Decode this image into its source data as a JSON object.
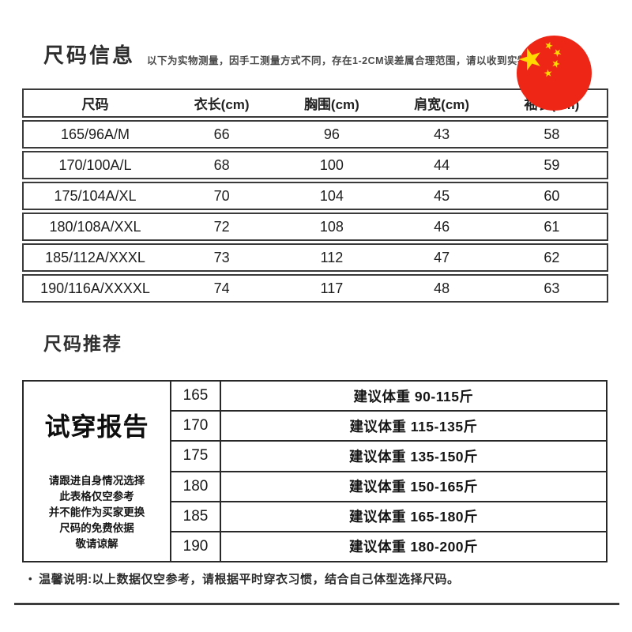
{
  "header": {
    "title": "尺码信息",
    "disclaimer": "以下为实物测量，因手工测量方式不同，存在1-2CM误差属合理范围，请以收到实物",
    "flag": {
      "red": "#ed2616",
      "star_yellow": "#ffd900",
      "star_glyph": "★"
    }
  },
  "size_table": {
    "headers": [
      "尺码",
      "衣长(cm)",
      "胸围(cm)",
      "肩宽(cm)",
      "袖长(cm)"
    ],
    "rows": [
      [
        "165/96A/M",
        "66",
        "96",
        "43",
        "58"
      ],
      [
        "170/100A/L",
        "68",
        "100",
        "44",
        "59"
      ],
      [
        "175/104A/XL",
        "70",
        "104",
        "45",
        "60"
      ],
      [
        "180/108A/XXL",
        "72",
        "108",
        "46",
        "61"
      ],
      [
        "185/112A/XXXL",
        "73",
        "112",
        "47",
        "62"
      ],
      [
        "190/116A/XXXXL",
        "74",
        "117",
        "48",
        "63"
      ]
    ]
  },
  "recommendation": {
    "section_title": "尺码推荐",
    "report_title": "试穿报告",
    "report_note": "请跟进自身情况选择\n此表格仅空参考\n并不能作为买家更换\n尺码的免费依据\n敬请谅解",
    "rows": [
      {
        "size": "165",
        "advice": "建议体重 90-115斤"
      },
      {
        "size": "170",
        "advice": "建议体重 115-135斤"
      },
      {
        "size": "175",
        "advice": "建议体重 135-150斤"
      },
      {
        "size": "180",
        "advice": "建议体重 150-165斤"
      },
      {
        "size": "185",
        "advice": "建议体重 165-180斤"
      },
      {
        "size": "190",
        "advice": "建议体重 180-200斤"
      }
    ]
  },
  "footer": {
    "bullet": "•",
    "note": "温馨说明:以上数据仅空参考，请根据平时穿衣习惯，结合自己体型选择尺码。"
  }
}
